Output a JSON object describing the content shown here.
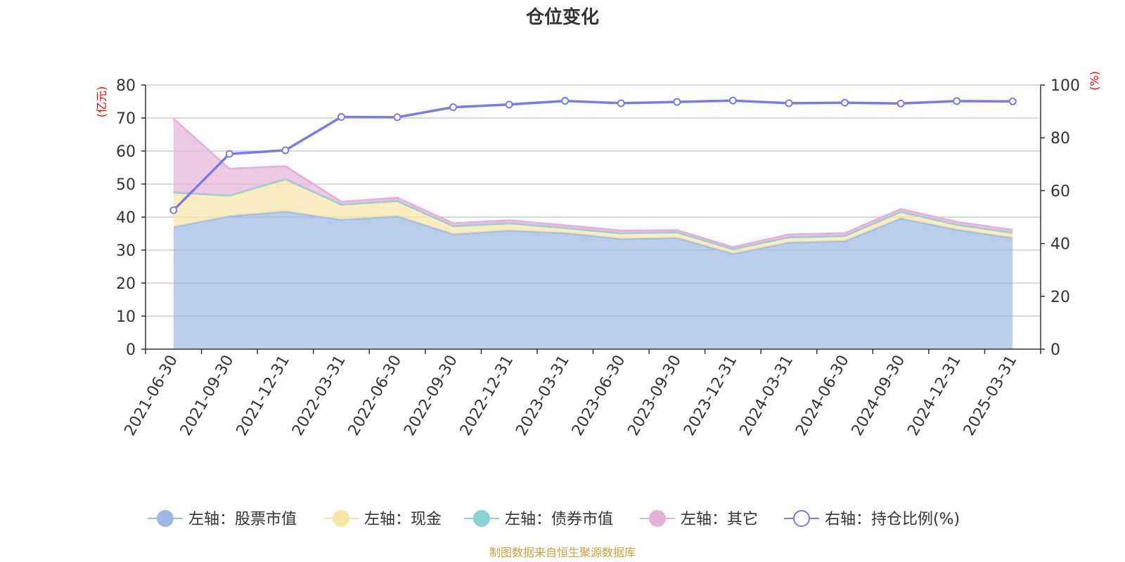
{
  "chart_data": {
    "type": "area",
    "title": "仓位变化",
    "categories": [
      "2021-06-30",
      "2021-09-30",
      "2021-12-31",
      "2022-03-31",
      "2022-06-30",
      "2022-09-30",
      "2022-12-31",
      "2023-03-31",
      "2023-06-30",
      "2023-09-30",
      "2023-12-31",
      "2024-03-31",
      "2024-06-30",
      "2024-09-30",
      "2024-12-31",
      "2025-03-31"
    ],
    "left_axis": {
      "unit": "(亿元)",
      "ylim": [
        0,
        80
      ],
      "ticks": [
        "0",
        "10",
        "20",
        "30",
        "40",
        "50",
        "60",
        "70",
        "80"
      ]
    },
    "right_axis": {
      "unit": "(%)",
      "ylim": [
        0,
        100
      ],
      "ticks": [
        "0",
        "20",
        "40",
        "60",
        "80",
        "100"
      ]
    },
    "grid": true,
    "legend_position": "bottom",
    "series": [
      {
        "name": "左轴：股票市值",
        "type": "area",
        "axis": "left",
        "stacked": true,
        "color": "#9db8e2",
        "values": [
          37.0,
          40.3,
          41.7,
          39.2,
          40.3,
          34.8,
          35.9,
          35.2,
          33.4,
          33.7,
          28.9,
          32.3,
          32.7,
          39.6,
          36.2,
          33.7
        ]
      },
      {
        "name": "左轴：现金",
        "type": "area",
        "axis": "left",
        "stacked": true,
        "color": "#f7e5a6",
        "values": [
          10.5,
          6.2,
          9.8,
          4.6,
          4.6,
          2.5,
          2.2,
          1.5,
          1.7,
          1.7,
          1.4,
          1.6,
          1.6,
          2.0,
          1.5,
          1.6
        ]
      },
      {
        "name": "左轴：债券市值",
        "type": "area",
        "axis": "left",
        "stacked": true,
        "color": "#8ed3d3",
        "values": [
          0,
          0,
          0,
          0,
          0,
          0,
          0,
          0,
          0,
          0,
          0,
          0,
          0,
          0,
          0,
          0
        ]
      },
      {
        "name": "左轴：其它",
        "type": "area",
        "axis": "left",
        "stacked": true,
        "color": "#e5b3d9",
        "values": [
          22.3,
          8.1,
          3.9,
          0.8,
          0.9,
          0.8,
          0.9,
          0.8,
          0.8,
          0.6,
          0.6,
          0.8,
          0.8,
          0.8,
          0.8,
          0.8
        ]
      },
      {
        "name": "右轴：持仓比例(%)",
        "type": "line",
        "axis": "right",
        "color": "#7b7be8",
        "values": [
          52.6,
          73.9,
          75.3,
          87.9,
          87.8,
          91.6,
          92.6,
          94.0,
          93.1,
          93.6,
          94.1,
          93.1,
          93.3,
          93.0,
          93.9,
          93.8
        ]
      }
    ],
    "source_note": "制图数据来自恒生聚源数据库"
  }
}
